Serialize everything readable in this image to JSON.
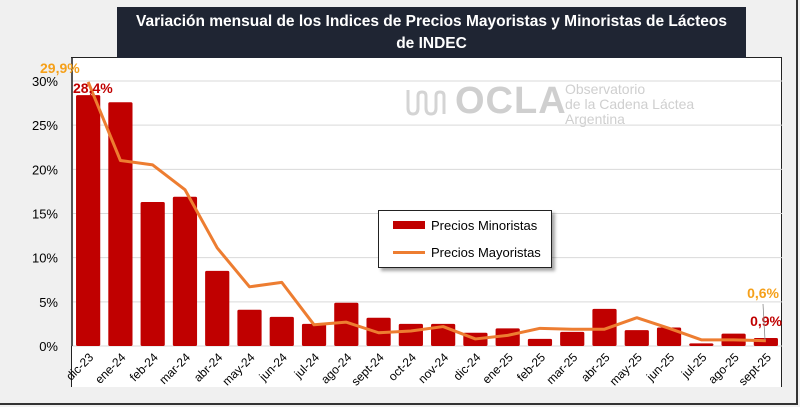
{
  "chart_data": {
    "type": "bar+line",
    "title": "Variación mensual de los Indices de Precios Mayoristas y Minoristas de Lácteos de INDEC",
    "title_lines": [
      "Variación mensual de los Indices de Precios Mayoristas y Minoristas de Lácteos",
      "de INDEC"
    ],
    "xlabel": "",
    "ylabel": "",
    "ylim": [
      0,
      30
    ],
    "yticks": [
      0,
      5,
      10,
      15,
      20,
      25,
      30
    ],
    "ytick_labels": [
      "0%",
      "5%",
      "10%",
      "15%",
      "20%",
      "25%",
      "30%"
    ],
    "grid": true,
    "legend_position": "center",
    "categories": [
      "dic-23",
      "ene-24",
      "feb-24",
      "mar-24",
      "abr-24",
      "may-24",
      "jun-24",
      "jul-24",
      "ago-24",
      "sept-24",
      "oct-24",
      "nov-24",
      "dic-24",
      "ene-25",
      "feb-25",
      "mar-25",
      "abr-25",
      "may-25",
      "jun-25",
      "jul-25",
      "ago-25",
      "sept-25"
    ],
    "series": [
      {
        "name": "Precios Minoristas",
        "type": "bar",
        "color": "#c00000",
        "values": [
          28.4,
          27.6,
          16.3,
          16.9,
          8.5,
          4.1,
          3.3,
          2.5,
          4.9,
          3.2,
          2.5,
          2.5,
          1.5,
          2.0,
          0.8,
          1.6,
          4.2,
          1.8,
          2.1,
          0.3,
          1.4,
          0.9
        ]
      },
      {
        "name": "Precios Mayoristas",
        "type": "line",
        "color": "#ed7d31",
        "values": [
          29.9,
          21.0,
          20.5,
          17.7,
          11.1,
          6.7,
          7.2,
          2.4,
          2.7,
          1.5,
          1.7,
          2.2,
          0.8,
          1.2,
          2.0,
          1.9,
          1.9,
          3.2,
          2.0,
          0.7,
          0.7,
          0.6
        ]
      }
    ],
    "annotations": [
      {
        "text": "29,9%",
        "series": "Precios Mayoristas",
        "category": "dic-23",
        "color": "#f5a01a"
      },
      {
        "text": "28,4%",
        "series": "Precios Minoristas",
        "category": "dic-23",
        "color": "#c00000"
      },
      {
        "text": "0,6%",
        "series": "Precios Mayoristas",
        "category": "sept-25",
        "color": "#f5a01a"
      },
      {
        "text": "0,9%",
        "series": "Precios Minoristas",
        "category": "sept-25",
        "color": "#c00000"
      }
    ]
  },
  "legend": {
    "items": [
      {
        "label": "Precios Minoristas",
        "color": "#c00000"
      },
      {
        "label": "Precios Mayoristas",
        "color": "#ed7d31"
      }
    ]
  },
  "watermark": {
    "logo_text": "OCLA",
    "line1": "Observatorio",
    "line2": "de la Cadena Láctea",
    "line3": "Argentina"
  }
}
